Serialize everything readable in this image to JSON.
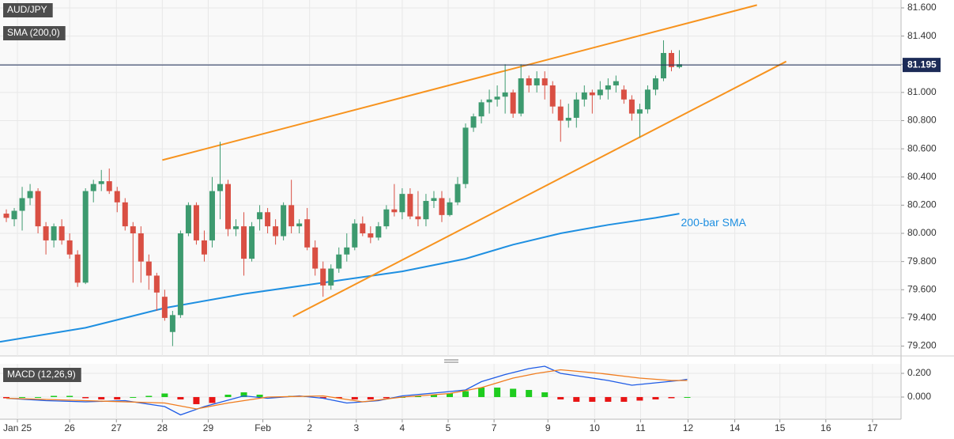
{
  "chart_data": [
    {
      "type": "candlestick",
      "title": "AUD/JPY",
      "subtitle": "SMA (200,0)",
      "up_color": "#3d9a6f",
      "down_color": "#d94f43",
      "open": [
        80.14,
        80.1,
        80.16,
        80.25,
        80.3,
        80.05,
        79.95,
        80.05,
        79.95,
        79.85,
        79.65,
        80.3,
        80.35,
        80.37,
        80.3,
        80.22,
        80.05,
        80.0,
        79.8,
        79.7,
        79.55,
        79.3,
        79.42,
        80.0,
        80.2,
        79.95,
        79.95,
        80.3,
        80.35,
        80.03,
        80.05,
        79.82,
        80.1,
        80.15,
        80.05,
        79.98,
        80.2,
        80.05,
        80.1,
        79.9,
        79.75,
        79.63,
        79.75,
        79.85,
        79.9,
        80.07,
        80.0,
        79.97,
        80.05,
        80.17,
        80.15,
        80.28,
        80.12,
        80.1,
        80.23,
        80.25,
        80.13,
        80.22,
        80.35,
        80.75,
        80.83,
        80.93,
        80.95,
        80.97,
        81.0,
        80.85,
        81.1,
        81.05,
        81.1,
        81.05,
        80.9,
        80.8,
        80.82,
        80.95,
        81.0,
        80.98,
        81.02,
        81.05,
        81.02,
        80.95,
        80.85,
        80.88,
        81.02,
        81.1,
        81.28,
        81.18
      ],
      "high": [
        80.17,
        80.18,
        80.33,
        80.35,
        80.32,
        80.08,
        80.07,
        80.1,
        80.0,
        79.88,
        80.32,
        80.38,
        80.45,
        80.46,
        80.33,
        80.25,
        80.08,
        80.05,
        79.85,
        79.72,
        79.6,
        79.45,
        80.02,
        80.22,
        80.22,
        80.02,
        80.4,
        80.65,
        80.38,
        80.1,
        80.15,
        80.08,
        80.2,
        80.18,
        80.1,
        80.22,
        80.38,
        80.1,
        80.18,
        79.95,
        79.8,
        79.78,
        79.9,
        80.0,
        80.1,
        80.12,
        80.05,
        80.08,
        80.2,
        80.35,
        80.32,
        80.32,
        80.3,
        80.28,
        80.3,
        80.3,
        80.25,
        80.4,
        80.78,
        80.85,
        80.95,
        81.02,
        81.05,
        81.2,
        81.02,
        81.2,
        81.12,
        81.15,
        81.15,
        81.08,
        80.95,
        80.92,
        81.0,
        81.05,
        81.02,
        81.08,
        81.1,
        81.12,
        81.05,
        80.98,
        80.92,
        81.05,
        81.12,
        81.37,
        81.3,
        81.3
      ],
      "low": [
        80.08,
        80.05,
        80.02,
        80.2,
        80.0,
        79.85,
        79.9,
        79.92,
        79.82,
        79.62,
        79.64,
        80.22,
        80.3,
        80.28,
        80.15,
        80.02,
        79.65,
        79.65,
        79.6,
        79.45,
        79.38,
        79.2,
        79.4,
        79.98,
        79.92,
        79.8,
        79.9,
        80.1,
        79.98,
        79.98,
        79.7,
        79.8,
        80.02,
        80.0,
        79.92,
        79.95,
        80.0,
        80.0,
        79.88,
        79.7,
        79.55,
        79.6,
        79.72,
        79.8,
        79.88,
        79.98,
        79.93,
        79.95,
        80.03,
        80.12,
        80.1,
        80.1,
        80.05,
        80.05,
        80.18,
        80.08,
        80.12,
        80.2,
        80.32,
        80.72,
        80.78,
        80.85,
        80.9,
        80.85,
        80.82,
        80.83,
        81.0,
        81.0,
        80.95,
        80.85,
        80.65,
        80.75,
        80.75,
        80.9,
        80.85,
        80.95,
        80.95,
        81.0,
        80.92,
        80.8,
        80.68,
        80.85,
        80.98,
        81.08,
        81.15,
        81.17
      ],
      "close": [
        80.11,
        80.16,
        80.25,
        80.3,
        80.05,
        79.95,
        80.05,
        79.95,
        79.85,
        79.65,
        80.3,
        80.35,
        80.37,
        80.3,
        80.22,
        80.05,
        80.0,
        79.8,
        79.7,
        79.58,
        79.4,
        79.42,
        80.0,
        80.2,
        79.95,
        79.85,
        80.3,
        80.35,
        80.03,
        80.05,
        79.82,
        80.05,
        80.15,
        80.05,
        79.98,
        80.2,
        80.05,
        80.07,
        79.9,
        79.75,
        79.63,
        79.75,
        79.85,
        79.9,
        80.07,
        80.0,
        79.97,
        80.05,
        80.17,
        80.15,
        80.28,
        80.12,
        80.1,
        80.23,
        80.25,
        80.13,
        80.22,
        80.35,
        80.75,
        80.83,
        80.93,
        80.95,
        80.97,
        81.0,
        80.85,
        81.1,
        81.05,
        81.1,
        81.05,
        80.9,
        80.8,
        80.82,
        80.95,
        81.0,
        80.98,
        81.02,
        81.05,
        81.08,
        80.95,
        80.85,
        80.88,
        81.02,
        81.1,
        81.28,
        81.18,
        81.2
      ],
      "sma": {
        "name": "200-bar SMA",
        "color": "#1e8fe1",
        "x": [
          -0.8,
          10,
          20,
          30,
          40,
          50,
          58,
          64,
          70,
          76,
          82,
          85
        ],
        "values": [
          79.23,
          79.33,
          79.47,
          79.57,
          79.65,
          79.73,
          79.82,
          79.92,
          80.0,
          80.06,
          80.11,
          80.14
        ]
      },
      "trend_color": "#f7931e",
      "trendlines": [
        {
          "x": [
            19.7,
            94.8
          ],
          "values": [
            80.52,
            81.62
          ]
        },
        {
          "x": [
            36.2,
            98.5
          ],
          "values": [
            79.41,
            81.22
          ]
        }
      ],
      "last_price": {
        "value": 81.195,
        "label": "81.195"
      },
      "last_price_color": "#1c2b57",
      "xlim": [
        -0.8,
        113
      ],
      "ylim": [
        79.13,
        81.656
      ],
      "xticks": [
        {
          "value": 1.4,
          "label": "Jan 25"
        },
        {
          "value": 8.0,
          "label": "26"
        },
        {
          "value": 13.9,
          "label": "27"
        },
        {
          "value": 19.7,
          "label": "28"
        },
        {
          "value": 25.5,
          "label": "29"
        },
        {
          "value": 32.4,
          "label": "Feb"
        },
        {
          "value": 38.3,
          "label": "2"
        },
        {
          "value": 44.2,
          "label": "3"
        },
        {
          "value": 50.0,
          "label": "4"
        },
        {
          "value": 55.8,
          "label": "5"
        },
        {
          "value": 61.6,
          "label": "7"
        },
        {
          "value": 68.4,
          "label": "9"
        },
        {
          "value": 74.3,
          "label": "10"
        },
        {
          "value": 80.1,
          "label": "11"
        },
        {
          "value": 86.1,
          "label": "12"
        },
        {
          "value": 92.0,
          "label": "14"
        },
        {
          "value": 97.7,
          "label": "15"
        },
        {
          "value": 103.5,
          "label": "16"
        },
        {
          "value": 109.4,
          "label": "17"
        }
      ],
      "yticks": [
        {
          "value": 79.2,
          "label": "79.200"
        },
        {
          "value": 79.4,
          "label": "79.400"
        },
        {
          "value": 79.6,
          "label": "79.600"
        },
        {
          "value": 79.8,
          "label": "79.800"
        },
        {
          "value": 80.0,
          "label": "80.000"
        },
        {
          "value": 80.2,
          "label": "80.200"
        },
        {
          "value": 80.4,
          "label": "80.400"
        },
        {
          "value": 80.6,
          "label": "80.600"
        },
        {
          "value": 80.8,
          "label": "80.800"
        },
        {
          "value": 81.0,
          "label": "81.000"
        },
        {
          "value": 81.2,
          "label": "81.200"
        },
        {
          "value": 81.4,
          "label": "81.400"
        },
        {
          "value": 81.6,
          "label": "81.600"
        }
      ],
      "grid": true
    },
    {
      "type": "macd",
      "title": "MACD (12,26,9)",
      "series": [
        {
          "color": "#1e5be6",
          "x": [
            0,
            5,
            10,
            15,
            20,
            22,
            25,
            30,
            33,
            37,
            40,
            43,
            47,
            50,
            55,
            58,
            60,
            63,
            66,
            68,
            70,
            73,
            76,
            79,
            82,
            85,
            86
          ],
          "values": [
            -0.01,
            -0.03,
            -0.04,
            -0.03,
            -0.08,
            -0.15,
            -0.08,
            0.01,
            -0.01,
            0.01,
            -0.01,
            -0.05,
            -0.03,
            0.01,
            0.04,
            0.06,
            0.13,
            0.19,
            0.24,
            0.26,
            0.2,
            0.17,
            0.14,
            0.1,
            0.12,
            0.14,
            0.15
          ]
        },
        {
          "color": "#f07c1e",
          "x": [
            0,
            10,
            20,
            24,
            28,
            33,
            40,
            45,
            50,
            56,
            60,
            64,
            67,
            70,
            75,
            80,
            84,
            86
          ],
          "values": [
            -0.01,
            -0.03,
            -0.05,
            -0.1,
            -0.05,
            0.0,
            0.01,
            -0.04,
            0.0,
            0.03,
            0.08,
            0.16,
            0.2,
            0.23,
            0.2,
            0.16,
            0.14,
            0.14
          ]
        }
      ],
      "histogram": {
        "up_color": "#1fcc1f",
        "down_color": "#e81515",
        "x": [
          0,
          2,
          4,
          6,
          8,
          10,
          12,
          14,
          16,
          18,
          20,
          22,
          24,
          26,
          28,
          30,
          32,
          34,
          36,
          38,
          40,
          42,
          44,
          46,
          48,
          50,
          52,
          54,
          56,
          58,
          60,
          62,
          64,
          66,
          68,
          70,
          72,
          74,
          76,
          78,
          80,
          82,
          84,
          86
        ],
        "values": [
          -0.01,
          0,
          0,
          0.01,
          0.01,
          -0.01,
          -0.02,
          -0.02,
          0.0,
          0.01,
          0.03,
          -0.02,
          -0.06,
          -0.05,
          0.02,
          0.04,
          0.02,
          0.0,
          0.01,
          0.01,
          -0.01,
          -0.01,
          -0.02,
          -0.02,
          -0.01,
          0.0,
          0.01,
          0.02,
          0.03,
          0.05,
          0.08,
          0.08,
          0.07,
          0.06,
          0.04,
          -0.02,
          -0.04,
          -0.04,
          -0.04,
          -0.04,
          -0.03,
          -0.02,
          -0.01,
          0.0
        ]
      },
      "ylim": [
        -0.187,
        0.28
      ],
      "yticks": [
        {
          "value": 0.0,
          "label": "0.000"
        },
        {
          "value": 0.2,
          "label": "0.200"
        }
      ]
    }
  ]
}
